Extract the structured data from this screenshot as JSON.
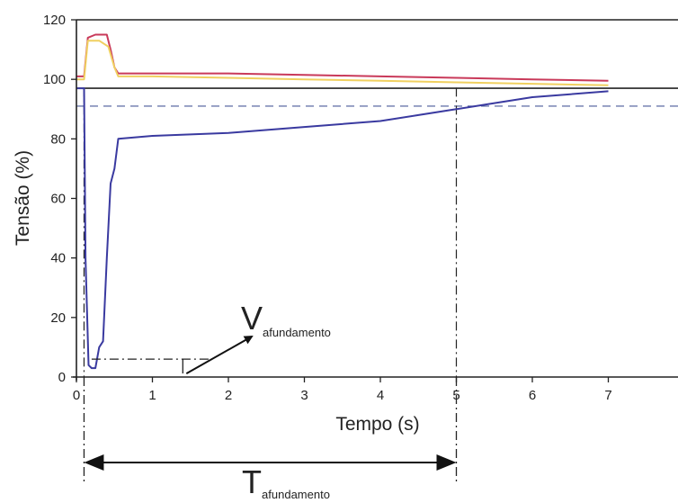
{
  "chart_data": {
    "type": "line",
    "title": "",
    "xlabel": "Tempo (s)",
    "ylabel": "Tensão (%)",
    "xlim": [
      0,
      8
    ],
    "ylim": [
      0,
      120
    ],
    "x_ticks": [
      0,
      1,
      2,
      3,
      4,
      5,
      6,
      7
    ],
    "y_ticks": [
      0,
      20,
      40,
      60,
      80,
      100,
      120
    ],
    "grid": false,
    "legend": "none",
    "reference_lines": [
      {
        "orientation": "horizontal",
        "y": 97,
        "style": "solid",
        "color": "#222222"
      },
      {
        "orientation": "horizontal",
        "y": 120,
        "style": "solid",
        "color": "#222222"
      },
      {
        "orientation": "horizontal",
        "y": 91,
        "style": "dashed",
        "color": "#4a5a9a"
      },
      {
        "orientation": "vertical",
        "x": 0.1,
        "style": "dash-dot",
        "color": "#222222"
      },
      {
        "orientation": "vertical",
        "x": 5.0,
        "style": "dash-dot",
        "color": "#222222"
      }
    ],
    "series": [
      {
        "color": "#c93a5a",
        "x": [
          0,
          0.1,
          0.15,
          0.25,
          0.4,
          0.45,
          0.5,
          0.55,
          1,
          2,
          3,
          4,
          5,
          6,
          7
        ],
        "y": [
          101,
          101,
          114,
          115,
          115,
          110,
          104,
          102,
          102,
          102,
          101.5,
          101,
          100.5,
          100,
          99.5
        ]
      },
      {
        "color": "#f0d060",
        "x": [
          0,
          0.1,
          0.15,
          0.3,
          0.42,
          0.5,
          0.55,
          1,
          2,
          3,
          4,
          5,
          6,
          7
        ],
        "y": [
          100,
          100,
          113,
          113,
          111,
          104,
          101,
          101,
          100.5,
          100,
          99.5,
          99,
          98.5,
          98
        ]
      },
      {
        "color": "#3a3aa0",
        "x": [
          0,
          0.1,
          0.12,
          0.16,
          0.2,
          0.25,
          0.3,
          0.35,
          0.4,
          0.45,
          0.5,
          0.55,
          1,
          2,
          3,
          4,
          4.5,
          5,
          5.5,
          6,
          6.5,
          7
        ],
        "y": [
          97,
          97,
          40,
          4,
          3,
          3,
          10,
          12,
          40,
          65,
          70,
          80,
          81,
          82,
          84,
          86,
          88,
          90,
          92,
          94,
          95,
          96
        ]
      }
    ],
    "annotations": {
      "v_sag_main": "V",
      "v_sag_sub": "afundamento",
      "t_sag_main": "T",
      "t_sag_sub": "afundamento",
      "v_sag_level": 6,
      "t_sag_start": 0.1,
      "t_sag_end": 5.0
    }
  }
}
